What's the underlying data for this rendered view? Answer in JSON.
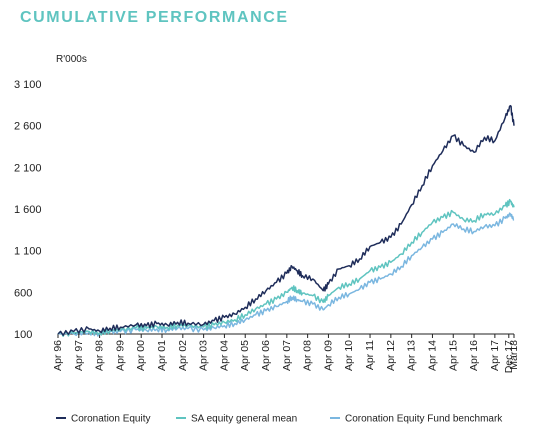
{
  "chart_data": {
    "type": "line",
    "title": "CUMULATIVE PERFORMANCE",
    "ylabel": "R'000s",
    "ylim": [
      100,
      3100
    ],
    "yticks": [
      "100",
      "600",
      "1 100",
      "1 600",
      "2 100",
      "2 600",
      "3 100"
    ],
    "x_tick_labels": [
      "Apr 96",
      "Apr 97",
      "Apr 98",
      "Apr 99",
      "Apr 00",
      "Apr 01",
      "Apr 02",
      "Apr 03",
      "Apr 04",
      "Apr 05",
      "Apr 06",
      "Apr 07",
      "Apr 08",
      "Apr 09",
      "Apr 10",
      "Apr 11",
      "Apr 12",
      "Apr 13",
      "Apr 14",
      "Apr 15",
      "Apr 16",
      "Apr 17",
      "Dec 17",
      "Mar18"
    ],
    "x": [
      1996.25,
      1997.0,
      1997.75,
      1998.25,
      1998.75,
      1999.25,
      2000.0,
      2000.5,
      2001.0,
      2001.5,
      2002.0,
      2002.5,
      2003.25,
      2003.75,
      2004.25,
      2004.75,
      2005.25,
      2005.75,
      2006.25,
      2006.75,
      2007.25,
      2007.5,
      2007.75,
      2008.0,
      2008.5,
      2009.0,
      2009.25,
      2009.75,
      2010.25,
      2010.75,
      2011.25,
      2011.75,
      2012.25,
      2012.75,
      2013.25,
      2013.75,
      2014.25,
      2014.75,
      2015.25,
      2015.75,
      2016.25,
      2016.75,
      2017.25,
      2017.75,
      2018.0,
      2018.17
    ],
    "series": [
      {
        "name": "Coronation Equity",
        "color": "#1f2d5a",
        "values": [
          100,
          130,
          160,
          135,
          170,
          180,
          210,
          200,
          225,
          210,
          240,
          230,
          215,
          260,
          300,
          340,
          420,
          520,
          620,
          720,
          830,
          910,
          860,
          800,
          760,
          620,
          700,
          880,
          920,
          1000,
          1150,
          1200,
          1260,
          1420,
          1650,
          1880,
          2120,
          2300,
          2480,
          2360,
          2280,
          2460,
          2420,
          2700,
          2840,
          2600
        ]
      },
      {
        "name": "SA equity general mean",
        "color": "#5fc4c0",
        "values": [
          100,
          110,
          130,
          115,
          140,
          150,
          175,
          170,
          190,
          180,
          205,
          200,
          185,
          210,
          240,
          270,
          330,
          400,
          460,
          520,
          600,
          660,
          620,
          590,
          560,
          480,
          560,
          660,
          700,
          760,
          860,
          900,
          960,
          1060,
          1200,
          1320,
          1440,
          1500,
          1560,
          1470,
          1460,
          1540,
          1540,
          1640,
          1690,
          1620
        ]
      },
      {
        "name": "Coronation Equity Fund benchmark",
        "color": "#7bb7e0",
        "values": [
          100,
          105,
          120,
          105,
          125,
          130,
          150,
          145,
          160,
          150,
          170,
          165,
          150,
          175,
          200,
          225,
          270,
          330,
          380,
          430,
          490,
          540,
          510,
          490,
          460,
          390,
          450,
          540,
          580,
          640,
          720,
          760,
          820,
          910,
          1040,
          1140,
          1240,
          1320,
          1420,
          1360,
          1330,
          1390,
          1400,
          1490,
          1540,
          1470
        ]
      }
    ],
    "grid": false,
    "legend_position": "bottom"
  }
}
